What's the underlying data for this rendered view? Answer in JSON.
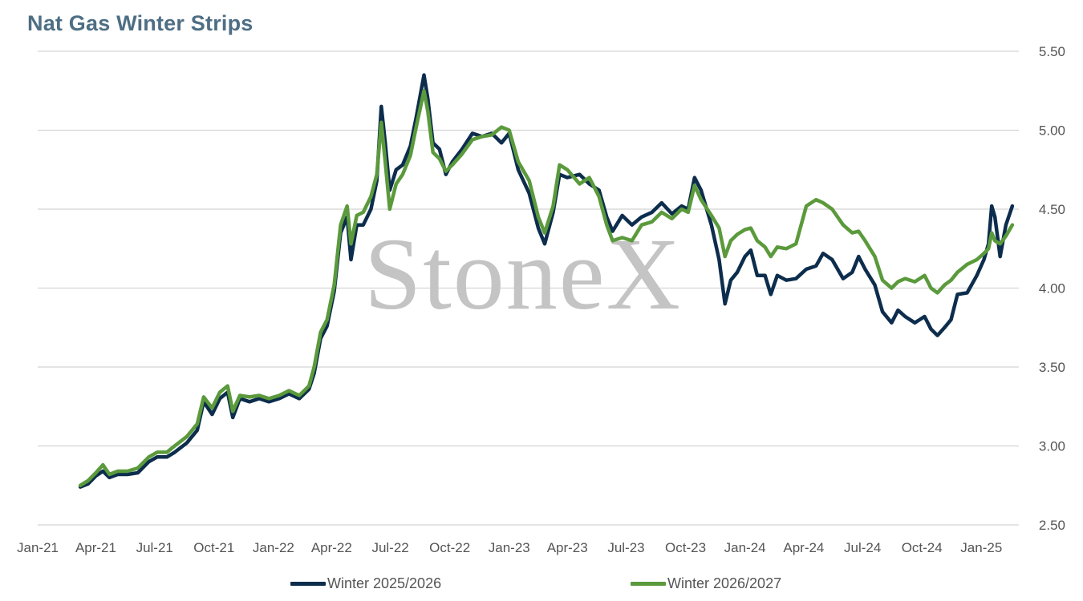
{
  "chart_data": {
    "type": "line",
    "title": "Nat Gas Winter Strips",
    "watermark": "StoneX",
    "xlabel": "",
    "ylabel": "",
    "ylim": [
      2.5,
      5.5
    ],
    "y_ticks": [
      "2.50",
      "3.00",
      "3.50",
      "4.00",
      "4.50",
      "5.00",
      "5.50"
    ],
    "y_axis_side": "right",
    "x_range": [
      "2021-01-01",
      "2025-02-28"
    ],
    "x_ticks": [
      {
        "date": "2021-01-01",
        "label": "Jan-21"
      },
      {
        "date": "2021-04-01",
        "label": "Apr-21"
      },
      {
        "date": "2021-07-01",
        "label": "Jul-21"
      },
      {
        "date": "2021-10-01",
        "label": "Oct-21"
      },
      {
        "date": "2022-01-01",
        "label": "Jan-22"
      },
      {
        "date": "2022-04-01",
        "label": "Apr-22"
      },
      {
        "date": "2022-07-01",
        "label": "Jul-22"
      },
      {
        "date": "2022-10-01",
        "label": "Oct-22"
      },
      {
        "date": "2023-01-01",
        "label": "Jan-23"
      },
      {
        "date": "2023-04-01",
        "label": "Apr-23"
      },
      {
        "date": "2023-07-01",
        "label": "Jul-23"
      },
      {
        "date": "2023-10-01",
        "label": "Oct-23"
      },
      {
        "date": "2024-01-01",
        "label": "Jan-24"
      },
      {
        "date": "2024-04-01",
        "label": "Apr-24"
      },
      {
        "date": "2024-07-01",
        "label": "Jul-24"
      },
      {
        "date": "2024-10-01",
        "label": "Oct-24"
      },
      {
        "date": "2025-01-01",
        "label": "Jan-25"
      }
    ],
    "grid": "horizontal",
    "legend_position": "bottom",
    "series": [
      {
        "name": "Winter 2025/2026",
        "color": "#0d2d4d",
        "points": [
          [
            "2021-03-08",
            2.74
          ],
          [
            "2021-03-20",
            2.76
          ],
          [
            "2021-04-01",
            2.81
          ],
          [
            "2021-04-12",
            2.84
          ],
          [
            "2021-04-22",
            2.8
          ],
          [
            "2021-05-05",
            2.82
          ],
          [
            "2021-05-20",
            2.82
          ],
          [
            "2021-06-05",
            2.83
          ],
          [
            "2021-06-22",
            2.9
          ],
          [
            "2021-07-05",
            2.93
          ],
          [
            "2021-07-20",
            2.93
          ],
          [
            "2021-08-01",
            2.96
          ],
          [
            "2021-08-20",
            3.02
          ],
          [
            "2021-09-05",
            3.1
          ],
          [
            "2021-09-15",
            3.28
          ],
          [
            "2021-09-28",
            3.2
          ],
          [
            "2021-10-10",
            3.3
          ],
          [
            "2021-10-22",
            3.34
          ],
          [
            "2021-10-30",
            3.18
          ],
          [
            "2021-11-10",
            3.3
          ],
          [
            "2021-11-25",
            3.28
          ],
          [
            "2021-12-10",
            3.3
          ],
          [
            "2021-12-25",
            3.28
          ],
          [
            "2022-01-10",
            3.3
          ],
          [
            "2022-01-25",
            3.33
          ],
          [
            "2022-02-10",
            3.3
          ],
          [
            "2022-02-25",
            3.36
          ],
          [
            "2022-03-05",
            3.46
          ],
          [
            "2022-03-15",
            3.68
          ],
          [
            "2022-03-25",
            3.76
          ],
          [
            "2022-04-05",
            3.98
          ],
          [
            "2022-04-15",
            4.35
          ],
          [
            "2022-04-25",
            4.45
          ],
          [
            "2022-05-01",
            4.18
          ],
          [
            "2022-05-10",
            4.4
          ],
          [
            "2022-05-20",
            4.4
          ],
          [
            "2022-06-01",
            4.5
          ],
          [
            "2022-06-10",
            4.68
          ],
          [
            "2022-06-17",
            5.15
          ],
          [
            "2022-06-23",
            4.92
          ],
          [
            "2022-06-30",
            4.62
          ],
          [
            "2022-07-10",
            4.75
          ],
          [
            "2022-07-20",
            4.78
          ],
          [
            "2022-08-01",
            4.9
          ],
          [
            "2022-08-10",
            5.08
          ],
          [
            "2022-08-22",
            5.35
          ],
          [
            "2022-08-28",
            5.2
          ],
          [
            "2022-09-05",
            4.92
          ],
          [
            "2022-09-15",
            4.88
          ],
          [
            "2022-09-25",
            4.72
          ],
          [
            "2022-10-05",
            4.8
          ],
          [
            "2022-10-20",
            4.88
          ],
          [
            "2022-11-05",
            4.98
          ],
          [
            "2022-11-20",
            4.96
          ],
          [
            "2022-12-05",
            4.98
          ],
          [
            "2022-12-20",
            4.92
          ],
          [
            "2023-01-01",
            4.98
          ],
          [
            "2023-01-15",
            4.75
          ],
          [
            "2023-02-01",
            4.6
          ],
          [
            "2023-02-15",
            4.38
          ],
          [
            "2023-02-25",
            4.28
          ],
          [
            "2023-03-10",
            4.48
          ],
          [
            "2023-03-20",
            4.72
          ],
          [
            "2023-04-01",
            4.7
          ],
          [
            "2023-04-20",
            4.72
          ],
          [
            "2023-05-05",
            4.66
          ],
          [
            "2023-05-20",
            4.62
          ],
          [
            "2023-06-01",
            4.45
          ],
          [
            "2023-06-10",
            4.36
          ],
          [
            "2023-06-25",
            4.46
          ],
          [
            "2023-07-10",
            4.4
          ],
          [
            "2023-07-25",
            4.45
          ],
          [
            "2023-08-10",
            4.48
          ],
          [
            "2023-08-25",
            4.54
          ],
          [
            "2023-09-10",
            4.47
          ],
          [
            "2023-09-25",
            4.52
          ],
          [
            "2023-10-05",
            4.5
          ],
          [
            "2023-10-15",
            4.7
          ],
          [
            "2023-10-25",
            4.62
          ],
          [
            "2023-11-10",
            4.4
          ],
          [
            "2023-11-22",
            4.18
          ],
          [
            "2023-12-01",
            3.9
          ],
          [
            "2023-12-10",
            4.05
          ],
          [
            "2023-12-20",
            4.1
          ],
          [
            "2024-01-01",
            4.2
          ],
          [
            "2024-01-10",
            4.24
          ],
          [
            "2024-01-20",
            4.08
          ],
          [
            "2024-02-01",
            4.08
          ],
          [
            "2024-02-10",
            3.96
          ],
          [
            "2024-02-20",
            4.08
          ],
          [
            "2024-03-05",
            4.05
          ],
          [
            "2024-03-20",
            4.06
          ],
          [
            "2024-04-05",
            4.12
          ],
          [
            "2024-04-20",
            4.14
          ],
          [
            "2024-05-01",
            4.22
          ],
          [
            "2024-05-15",
            4.18
          ],
          [
            "2024-06-01",
            4.06
          ],
          [
            "2024-06-15",
            4.1
          ],
          [
            "2024-06-25",
            4.2
          ],
          [
            "2024-07-05",
            4.12
          ],
          [
            "2024-07-20",
            4.02
          ],
          [
            "2024-08-01",
            3.85
          ],
          [
            "2024-08-15",
            3.78
          ],
          [
            "2024-08-25",
            3.86
          ],
          [
            "2024-09-05",
            3.82
          ],
          [
            "2024-09-20",
            3.78
          ],
          [
            "2024-10-05",
            3.82
          ],
          [
            "2024-10-15",
            3.74
          ],
          [
            "2024-10-25",
            3.7
          ],
          [
            "2024-11-05",
            3.75
          ],
          [
            "2024-11-15",
            3.8
          ],
          [
            "2024-11-25",
            3.96
          ],
          [
            "2024-12-10",
            3.97
          ],
          [
            "2024-12-25",
            4.08
          ],
          [
            "2025-01-05",
            4.18
          ],
          [
            "2025-01-12",
            4.28
          ],
          [
            "2025-01-17",
            4.52
          ],
          [
            "2025-01-22",
            4.45
          ],
          [
            "2025-01-30",
            4.2
          ],
          [
            "2025-02-08",
            4.4
          ],
          [
            "2025-02-18",
            4.52
          ]
        ]
      },
      {
        "name": "Winter 2026/2027",
        "color": "#5b9a3c",
        "points": [
          [
            "2021-03-08",
            2.75
          ],
          [
            "2021-03-20",
            2.78
          ],
          [
            "2021-04-01",
            2.83
          ],
          [
            "2021-04-12",
            2.88
          ],
          [
            "2021-04-22",
            2.82
          ],
          [
            "2021-05-05",
            2.84
          ],
          [
            "2021-05-20",
            2.84
          ],
          [
            "2021-06-05",
            2.86
          ],
          [
            "2021-06-22",
            2.93
          ],
          [
            "2021-07-05",
            2.96
          ],
          [
            "2021-07-20",
            2.96
          ],
          [
            "2021-08-01",
            3.0
          ],
          [
            "2021-08-20",
            3.06
          ],
          [
            "2021-09-05",
            3.14
          ],
          [
            "2021-09-15",
            3.31
          ],
          [
            "2021-09-28",
            3.24
          ],
          [
            "2021-10-10",
            3.34
          ],
          [
            "2021-10-22",
            3.38
          ],
          [
            "2021-10-30",
            3.22
          ],
          [
            "2021-11-10",
            3.32
          ],
          [
            "2021-11-25",
            3.31
          ],
          [
            "2021-12-10",
            3.32
          ],
          [
            "2021-12-25",
            3.3
          ],
          [
            "2022-01-10",
            3.32
          ],
          [
            "2022-01-25",
            3.35
          ],
          [
            "2022-02-10",
            3.32
          ],
          [
            "2022-02-25",
            3.38
          ],
          [
            "2022-03-05",
            3.5
          ],
          [
            "2022-03-15",
            3.72
          ],
          [
            "2022-03-25",
            3.8
          ],
          [
            "2022-04-05",
            4.02
          ],
          [
            "2022-04-15",
            4.4
          ],
          [
            "2022-04-25",
            4.52
          ],
          [
            "2022-05-01",
            4.28
          ],
          [
            "2022-05-10",
            4.46
          ],
          [
            "2022-05-20",
            4.48
          ],
          [
            "2022-06-01",
            4.58
          ],
          [
            "2022-06-10",
            4.72
          ],
          [
            "2022-06-17",
            5.05
          ],
          [
            "2022-06-23",
            4.8
          ],
          [
            "2022-06-30",
            4.5
          ],
          [
            "2022-07-10",
            4.66
          ],
          [
            "2022-07-20",
            4.72
          ],
          [
            "2022-08-01",
            4.84
          ],
          [
            "2022-08-10",
            5.02
          ],
          [
            "2022-08-22",
            5.25
          ],
          [
            "2022-08-28",
            5.12
          ],
          [
            "2022-09-05",
            4.86
          ],
          [
            "2022-09-15",
            4.82
          ],
          [
            "2022-09-25",
            4.74
          ],
          [
            "2022-10-05",
            4.78
          ],
          [
            "2022-10-20",
            4.85
          ],
          [
            "2022-11-05",
            4.94
          ],
          [
            "2022-11-20",
            4.96
          ],
          [
            "2022-12-05",
            4.97
          ],
          [
            "2022-12-20",
            5.02
          ],
          [
            "2023-01-01",
            5.0
          ],
          [
            "2023-01-15",
            4.8
          ],
          [
            "2023-02-01",
            4.68
          ],
          [
            "2023-02-15",
            4.45
          ],
          [
            "2023-02-25",
            4.35
          ],
          [
            "2023-03-10",
            4.52
          ],
          [
            "2023-03-20",
            4.78
          ],
          [
            "2023-04-01",
            4.75
          ],
          [
            "2023-04-20",
            4.66
          ],
          [
            "2023-05-05",
            4.7
          ],
          [
            "2023-05-20",
            4.58
          ],
          [
            "2023-06-01",
            4.4
          ],
          [
            "2023-06-10",
            4.3
          ],
          [
            "2023-06-25",
            4.32
          ],
          [
            "2023-07-10",
            4.3
          ],
          [
            "2023-07-25",
            4.4
          ],
          [
            "2023-08-10",
            4.42
          ],
          [
            "2023-08-25",
            4.48
          ],
          [
            "2023-09-10",
            4.44
          ],
          [
            "2023-09-25",
            4.5
          ],
          [
            "2023-10-05",
            4.48
          ],
          [
            "2023-10-15",
            4.65
          ],
          [
            "2023-10-25",
            4.56
          ],
          [
            "2023-11-10",
            4.46
          ],
          [
            "2023-11-22",
            4.38
          ],
          [
            "2023-12-01",
            4.2
          ],
          [
            "2023-12-10",
            4.3
          ],
          [
            "2023-12-20",
            4.34
          ],
          [
            "2024-01-01",
            4.37
          ],
          [
            "2024-01-10",
            4.38
          ],
          [
            "2024-01-20",
            4.3
          ],
          [
            "2024-02-01",
            4.26
          ],
          [
            "2024-02-10",
            4.2
          ],
          [
            "2024-02-20",
            4.26
          ],
          [
            "2024-03-05",
            4.25
          ],
          [
            "2024-03-20",
            4.28
          ],
          [
            "2024-04-05",
            4.52
          ],
          [
            "2024-04-20",
            4.56
          ],
          [
            "2024-05-01",
            4.54
          ],
          [
            "2024-05-15",
            4.5
          ],
          [
            "2024-06-01",
            4.4
          ],
          [
            "2024-06-15",
            4.35
          ],
          [
            "2024-06-25",
            4.36
          ],
          [
            "2024-07-05",
            4.3
          ],
          [
            "2024-07-20",
            4.2
          ],
          [
            "2024-08-01",
            4.05
          ],
          [
            "2024-08-15",
            4.0
          ],
          [
            "2024-08-25",
            4.04
          ],
          [
            "2024-09-05",
            4.06
          ],
          [
            "2024-09-20",
            4.04
          ],
          [
            "2024-10-05",
            4.08
          ],
          [
            "2024-10-15",
            4.0
          ],
          [
            "2024-10-25",
            3.97
          ],
          [
            "2024-11-05",
            4.02
          ],
          [
            "2024-11-15",
            4.05
          ],
          [
            "2024-11-25",
            4.1
          ],
          [
            "2024-12-10",
            4.15
          ],
          [
            "2024-12-25",
            4.18
          ],
          [
            "2025-01-05",
            4.22
          ],
          [
            "2025-01-12",
            4.25
          ],
          [
            "2025-01-17",
            4.35
          ],
          [
            "2025-01-22",
            4.3
          ],
          [
            "2025-01-30",
            4.28
          ],
          [
            "2025-02-08",
            4.33
          ],
          [
            "2025-02-18",
            4.4
          ]
        ]
      }
    ]
  }
}
